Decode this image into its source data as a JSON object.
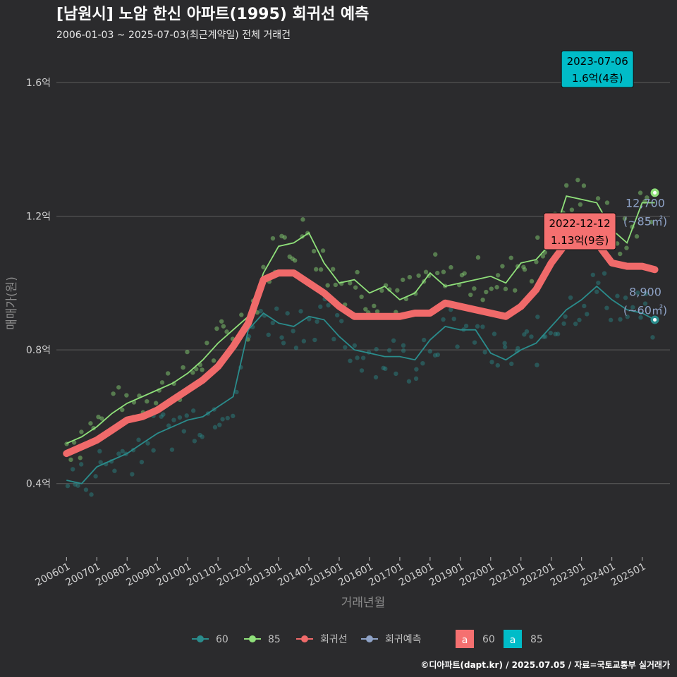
{
  "header": {
    "title": "[남원시] 노암 한신 아파트(1995) 회귀선 예측",
    "subtitle": "2006-01-03 ~ 2025-07-03(최근계약일) 전체 거래건"
  },
  "credit": "©디아파트(dapt.kr) / 2025.07.05 / 자료=국토교통부 실거래가",
  "colors": {
    "background": "#2b2b2d",
    "grid": "#5c5c5c",
    "s60": "#2a8c8c",
    "s85": "#8fe07a",
    "regression": "#f06a6a",
    "forecast": "#8fa3c7",
    "ann60": "#f57070",
    "ann85": "#00bcc8"
  },
  "chart_data": {
    "type": "line",
    "xlabel": "거래년월",
    "ylabel": "매매가(원)",
    "x_range": [
      "2005-09",
      "2025-12"
    ],
    "ylim": [
      0.18,
      1.72
    ],
    "y_unit": "억",
    "y_ticks": [
      {
        "value": 0.4,
        "label": "0.4억"
      },
      {
        "value": 0.8,
        "label": "0.8억"
      },
      {
        "value": 1.2,
        "label": "1.2억"
      },
      {
        "value": 1.6,
        "label": "1.6억"
      }
    ],
    "x_ticks": [
      "200601",
      "200701",
      "200801",
      "200901",
      "201001",
      "201101",
      "201201",
      "201301",
      "201401",
      "201501",
      "201601",
      "201701",
      "201801",
      "201901",
      "202001",
      "202101",
      "202201",
      "202301",
      "202401",
      "202501"
    ],
    "grid": true,
    "legend": {
      "position": "bottom",
      "items": [
        {
          "name": "60",
          "icon": "point-line-icon",
          "color": "#2a8c8c"
        },
        {
          "name": "85",
          "icon": "point-line-icon",
          "color": "#8fe07a"
        },
        {
          "name": "회귀선",
          "icon": "point-line-icon",
          "color": "#f06a6a"
        },
        {
          "name": "회귀예측",
          "icon": "point-line-icon",
          "color": "#8fa3c7"
        }
      ],
      "label_items": [
        {
          "glyph": "a",
          "name": "60",
          "color": "#f57070"
        },
        {
          "glyph": "a",
          "name": "85",
          "color": "#00bcc8"
        }
      ]
    },
    "series": [
      {
        "name": "85",
        "points": [
          [
            "2006-01",
            0.52
          ],
          [
            "2006-07",
            0.54
          ],
          [
            "2007-01",
            0.57
          ],
          [
            "2007-07",
            0.61
          ],
          [
            "2008-01",
            0.64
          ],
          [
            "2008-07",
            0.66
          ],
          [
            "2009-01",
            0.68
          ],
          [
            "2009-07",
            0.7
          ],
          [
            "2010-01",
            0.73
          ],
          [
            "2010-07",
            0.77
          ],
          [
            "2011-01",
            0.82
          ],
          [
            "2011-07",
            0.86
          ],
          [
            "2012-01",
            0.9
          ],
          [
            "2012-07",
            1.03
          ],
          [
            "2013-01",
            1.11
          ],
          [
            "2013-07",
            1.12
          ],
          [
            "2014-01",
            1.15
          ],
          [
            "2014-07",
            1.06
          ],
          [
            "2015-01",
            1.0
          ],
          [
            "2015-07",
            1.01
          ],
          [
            "2016-01",
            0.97
          ],
          [
            "2016-07",
            0.99
          ],
          [
            "2017-01",
            0.95
          ],
          [
            "2017-07",
            0.97
          ],
          [
            "2018-01",
            1.03
          ],
          [
            "2018-07",
            0.99
          ],
          [
            "2019-01",
            1.0
          ],
          [
            "2019-07",
            1.01
          ],
          [
            "2020-01",
            1.02
          ],
          [
            "2020-07",
            1.0
          ],
          [
            "2021-01",
            1.06
          ],
          [
            "2021-07",
            1.07
          ],
          [
            "2022-01",
            1.12
          ],
          [
            "2022-07",
            1.26
          ],
          [
            "2023-01",
            1.25
          ],
          [
            "2023-07",
            1.24
          ],
          [
            "2024-01",
            1.16
          ],
          [
            "2024-07",
            1.12
          ],
          [
            "2025-01",
            1.24
          ],
          [
            "2025-06",
            1.24
          ]
        ]
      },
      {
        "name": "60",
        "points": [
          [
            "2006-01",
            0.41
          ],
          [
            "2006-07",
            0.4
          ],
          [
            "2007-01",
            0.45
          ],
          [
            "2007-07",
            0.47
          ],
          [
            "2008-01",
            0.49
          ],
          [
            "2008-07",
            0.52
          ],
          [
            "2009-01",
            0.55
          ],
          [
            "2009-07",
            0.57
          ],
          [
            "2010-01",
            0.59
          ],
          [
            "2010-07",
            0.6
          ],
          [
            "2011-01",
            0.63
          ],
          [
            "2011-07",
            0.66
          ],
          [
            "2012-01",
            0.86
          ],
          [
            "2012-07",
            0.91
          ],
          [
            "2013-01",
            0.88
          ],
          [
            "2013-07",
            0.87
          ],
          [
            "2014-01",
            0.9
          ],
          [
            "2014-07",
            0.89
          ],
          [
            "2015-01",
            0.84
          ],
          [
            "2015-07",
            0.8
          ],
          [
            "2016-01",
            0.79
          ],
          [
            "2016-07",
            0.78
          ],
          [
            "2017-01",
            0.78
          ],
          [
            "2017-07",
            0.77
          ],
          [
            "2018-01",
            0.83
          ],
          [
            "2018-07",
            0.87
          ],
          [
            "2019-01",
            0.86
          ],
          [
            "2019-07",
            0.86
          ],
          [
            "2020-01",
            0.79
          ],
          [
            "2020-07",
            0.77
          ],
          [
            "2021-01",
            0.8
          ],
          [
            "2021-07",
            0.82
          ],
          [
            "2022-01",
            0.87
          ],
          [
            "2022-07",
            0.92
          ],
          [
            "2023-01",
            0.95
          ],
          [
            "2023-07",
            0.99
          ],
          [
            "2024-01",
            0.95
          ],
          [
            "2024-07",
            0.92
          ],
          [
            "2025-01",
            0.91
          ],
          [
            "2025-06",
            0.89
          ]
        ]
      },
      {
        "name": "회귀선",
        "points": [
          [
            "2006-01",
            0.49
          ],
          [
            "2006-07",
            0.51
          ],
          [
            "2007-01",
            0.53
          ],
          [
            "2007-07",
            0.56
          ],
          [
            "2008-01",
            0.59
          ],
          [
            "2008-07",
            0.6
          ],
          [
            "2009-01",
            0.62
          ],
          [
            "2009-07",
            0.65
          ],
          [
            "2010-01",
            0.68
          ],
          [
            "2010-07",
            0.71
          ],
          [
            "2011-01",
            0.75
          ],
          [
            "2011-07",
            0.81
          ],
          [
            "2012-01",
            0.88
          ],
          [
            "2012-07",
            1.01
          ],
          [
            "2013-01",
            1.03
          ],
          [
            "2013-07",
            1.03
          ],
          [
            "2014-01",
            1.0
          ],
          [
            "2014-07",
            0.97
          ],
          [
            "2015-01",
            0.93
          ],
          [
            "2015-07",
            0.9
          ],
          [
            "2016-01",
            0.9
          ],
          [
            "2016-07",
            0.9
          ],
          [
            "2017-01",
            0.9
          ],
          [
            "2017-07",
            0.91
          ],
          [
            "2018-01",
            0.91
          ],
          [
            "2018-07",
            0.94
          ],
          [
            "2019-01",
            0.93
          ],
          [
            "2019-07",
            0.92
          ],
          [
            "2020-01",
            0.91
          ],
          [
            "2020-07",
            0.9
          ],
          [
            "2021-01",
            0.93
          ],
          [
            "2021-07",
            0.98
          ],
          [
            "2022-01",
            1.06
          ],
          [
            "2022-07",
            1.12
          ],
          [
            "2022-12",
            1.13
          ],
          [
            "2023-07",
            1.12
          ],
          [
            "2024-01",
            1.06
          ],
          [
            "2024-07",
            1.05
          ],
          [
            "2025-01",
            1.05
          ],
          [
            "2025-06",
            1.04
          ]
        ]
      }
    ],
    "annotations": [
      {
        "date_label": "2023-07-06",
        "value_label": "1.6억(4층)",
        "series": "85",
        "x": "2023-07",
        "y": 1.6
      },
      {
        "date_label": "2022-12-12",
        "value_label": "1.13억(9층)",
        "series": "60",
        "x": "2022-12",
        "y": 1.13
      }
    ],
    "end_labels": [
      {
        "series": "85",
        "value": "12,700",
        "area": "(~85㎡)",
        "x": "2025-06",
        "y": 1.27
      },
      {
        "series": "60",
        "value": "8,900",
        "area": "(~60㎡)",
        "x": "2025-06",
        "y": 0.89
      }
    ]
  }
}
